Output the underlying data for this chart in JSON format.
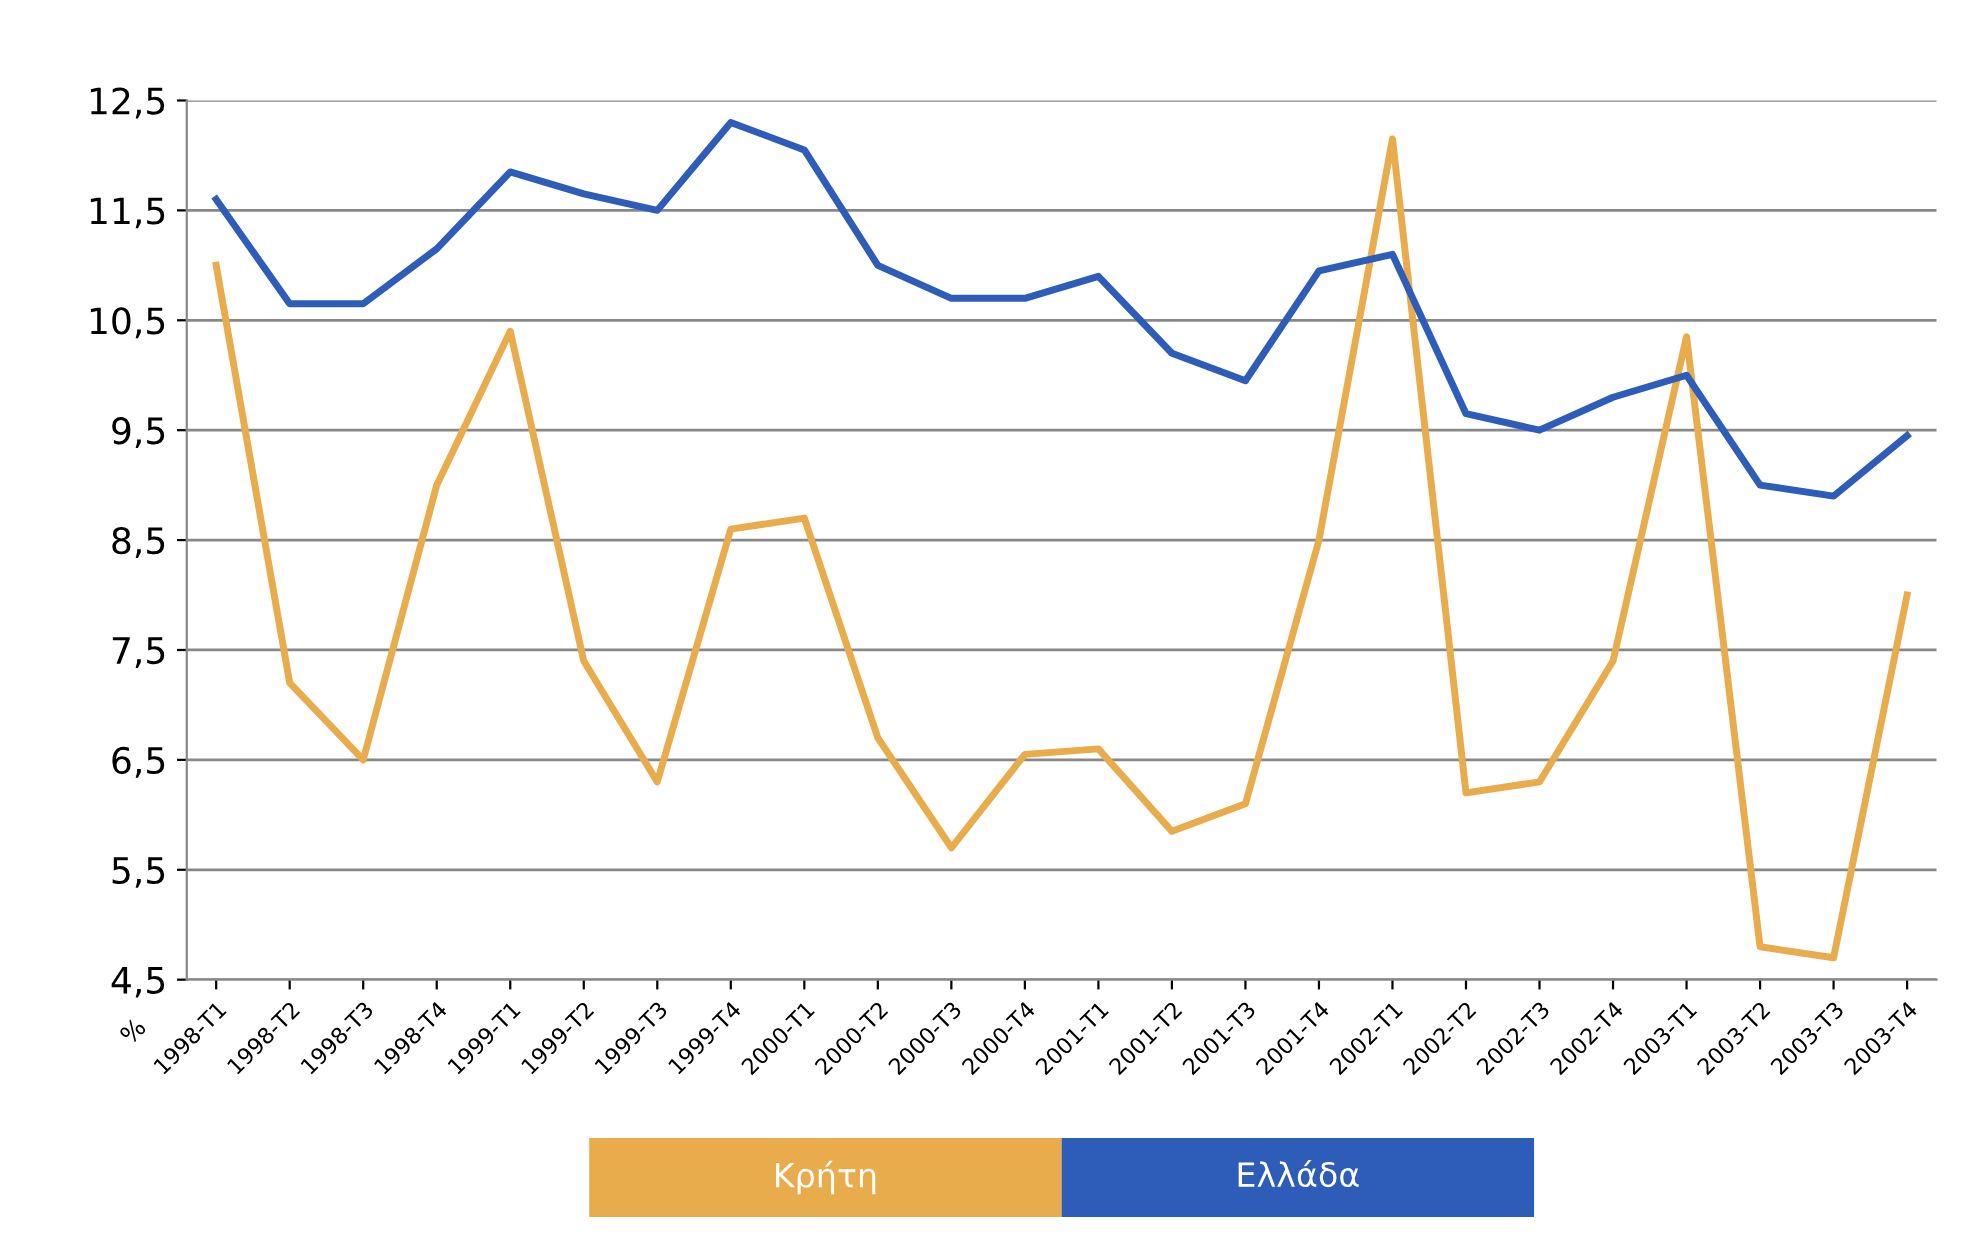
{
  "chart_data": {
    "type": "line",
    "categories": [
      "1998-Τ1",
      "1998-Τ2",
      "1998-Τ3",
      "1998-Τ4",
      "1999-Τ1",
      "1999-Τ2",
      "1999-Τ3",
      "1999-Τ4",
      "2000-Τ1",
      "2000-Τ2",
      "2000-Τ3",
      "2000-Τ4",
      "2001-Τ1",
      "2001-Τ2",
      "2001-Τ3",
      "2001-Τ4",
      "2002-Τ1",
      "2002-Τ2",
      "2002-Τ3",
      "2002-Τ4",
      "2003-Τ1",
      "2003-Τ2",
      "2003-Τ3",
      "2003-Τ4"
    ],
    "series": [
      {
        "name": "Κρήτη",
        "color": "#e8ac4c",
        "values": [
          11.0,
          7.2,
          6.5,
          9.0,
          10.4,
          7.4,
          6.3,
          8.6,
          8.7,
          6.7,
          5.7,
          6.55,
          6.6,
          5.85,
          6.1,
          8.5,
          12.15,
          6.2,
          6.3,
          7.4,
          10.35,
          4.8,
          4.7,
          8.0
        ]
      },
      {
        "name": "Ελλάδα",
        "color": "#2d5db8",
        "values": [
          11.6,
          10.65,
          10.65,
          11.15,
          11.85,
          11.65,
          11.5,
          12.3,
          12.05,
          11.0,
          10.7,
          10.7,
          10.9,
          10.2,
          9.95,
          10.95,
          11.1,
          9.65,
          9.5,
          9.8,
          10.0,
          9.0,
          8.9,
          9.45
        ]
      }
    ],
    "ylim": [
      4.5,
      12.5
    ],
    "yticks": [
      {
        "value": 4.5,
        "label": "4,5"
      },
      {
        "value": 5.5,
        "label": "5,5"
      },
      {
        "value": 6.5,
        "label": "6,5"
      },
      {
        "value": 7.5,
        "label": "7,5"
      },
      {
        "value": 8.5,
        "label": "8,5"
      },
      {
        "value": 9.5,
        "label": "9,5"
      },
      {
        "value": 10.5,
        "label": "10,5"
      },
      {
        "value": 11.5,
        "label": "11,5"
      },
      {
        "value": 12.5,
        "label": "12,5"
      }
    ],
    "grid": "y",
    "legend": "bottom",
    "marker": "none",
    "line_style": "solid",
    "annotations": [
      "%"
    ]
  }
}
